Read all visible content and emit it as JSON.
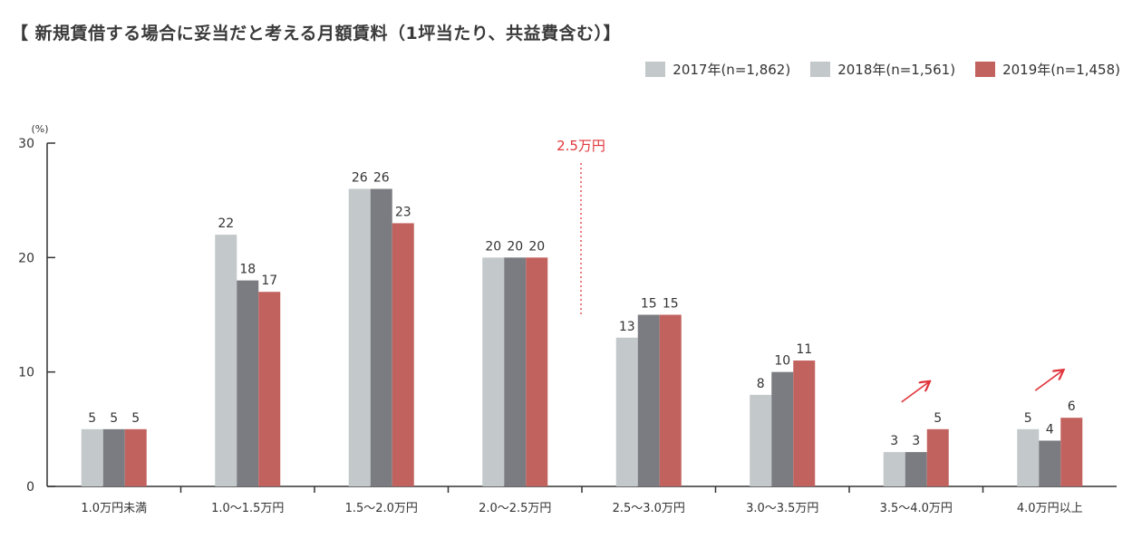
{
  "title": "【 新規賃借する場合に妥当だと考える月額賃料（1坪当たり、共益費含む）】",
  "colors": {
    "s2017": "#c3c8cb",
    "s2018": "#7b7c81",
    "s2019": "#c2625f",
    "accent": "#e0353b",
    "axis": "#333333"
  },
  "chart_data": {
    "type": "bar",
    "title": "【 新規賃借する場合に妥当だと考える月額賃料（1坪当たり、共益費含む）】",
    "ylabel": "(%)",
    "ylim": [
      0,
      30
    ],
    "yticks": [
      "0",
      "10",
      "20",
      "30"
    ],
    "grid": false,
    "legend_position": "top-right",
    "categories": [
      "1.0万円未満",
      "1.0～1.5万円",
      "1.5～2.0万円",
      "2.0～2.5万円",
      "2.5～3.0万円",
      "3.0～3.5万円",
      "3.5～4.0万円",
      "4.0万円以上"
    ],
    "series": [
      {
        "name": "2017年(n=1,862)",
        "values": [
          5,
          22,
          26,
          20,
          13,
          8,
          3,
          5
        ]
      },
      {
        "name": "2018年(n=1,561)",
        "values": [
          5,
          18,
          26,
          20,
          15,
          10,
          3,
          4
        ]
      },
      {
        "name": "2019年(n=1,458)",
        "values": [
          5,
          17,
          23,
          20,
          15,
          11,
          5,
          6
        ]
      }
    ],
    "annotations": {
      "threshold_label": "2.5万円",
      "rising_arrows_on": [
        "3.5～4.0万円",
        "4.0万円以上"
      ]
    }
  }
}
